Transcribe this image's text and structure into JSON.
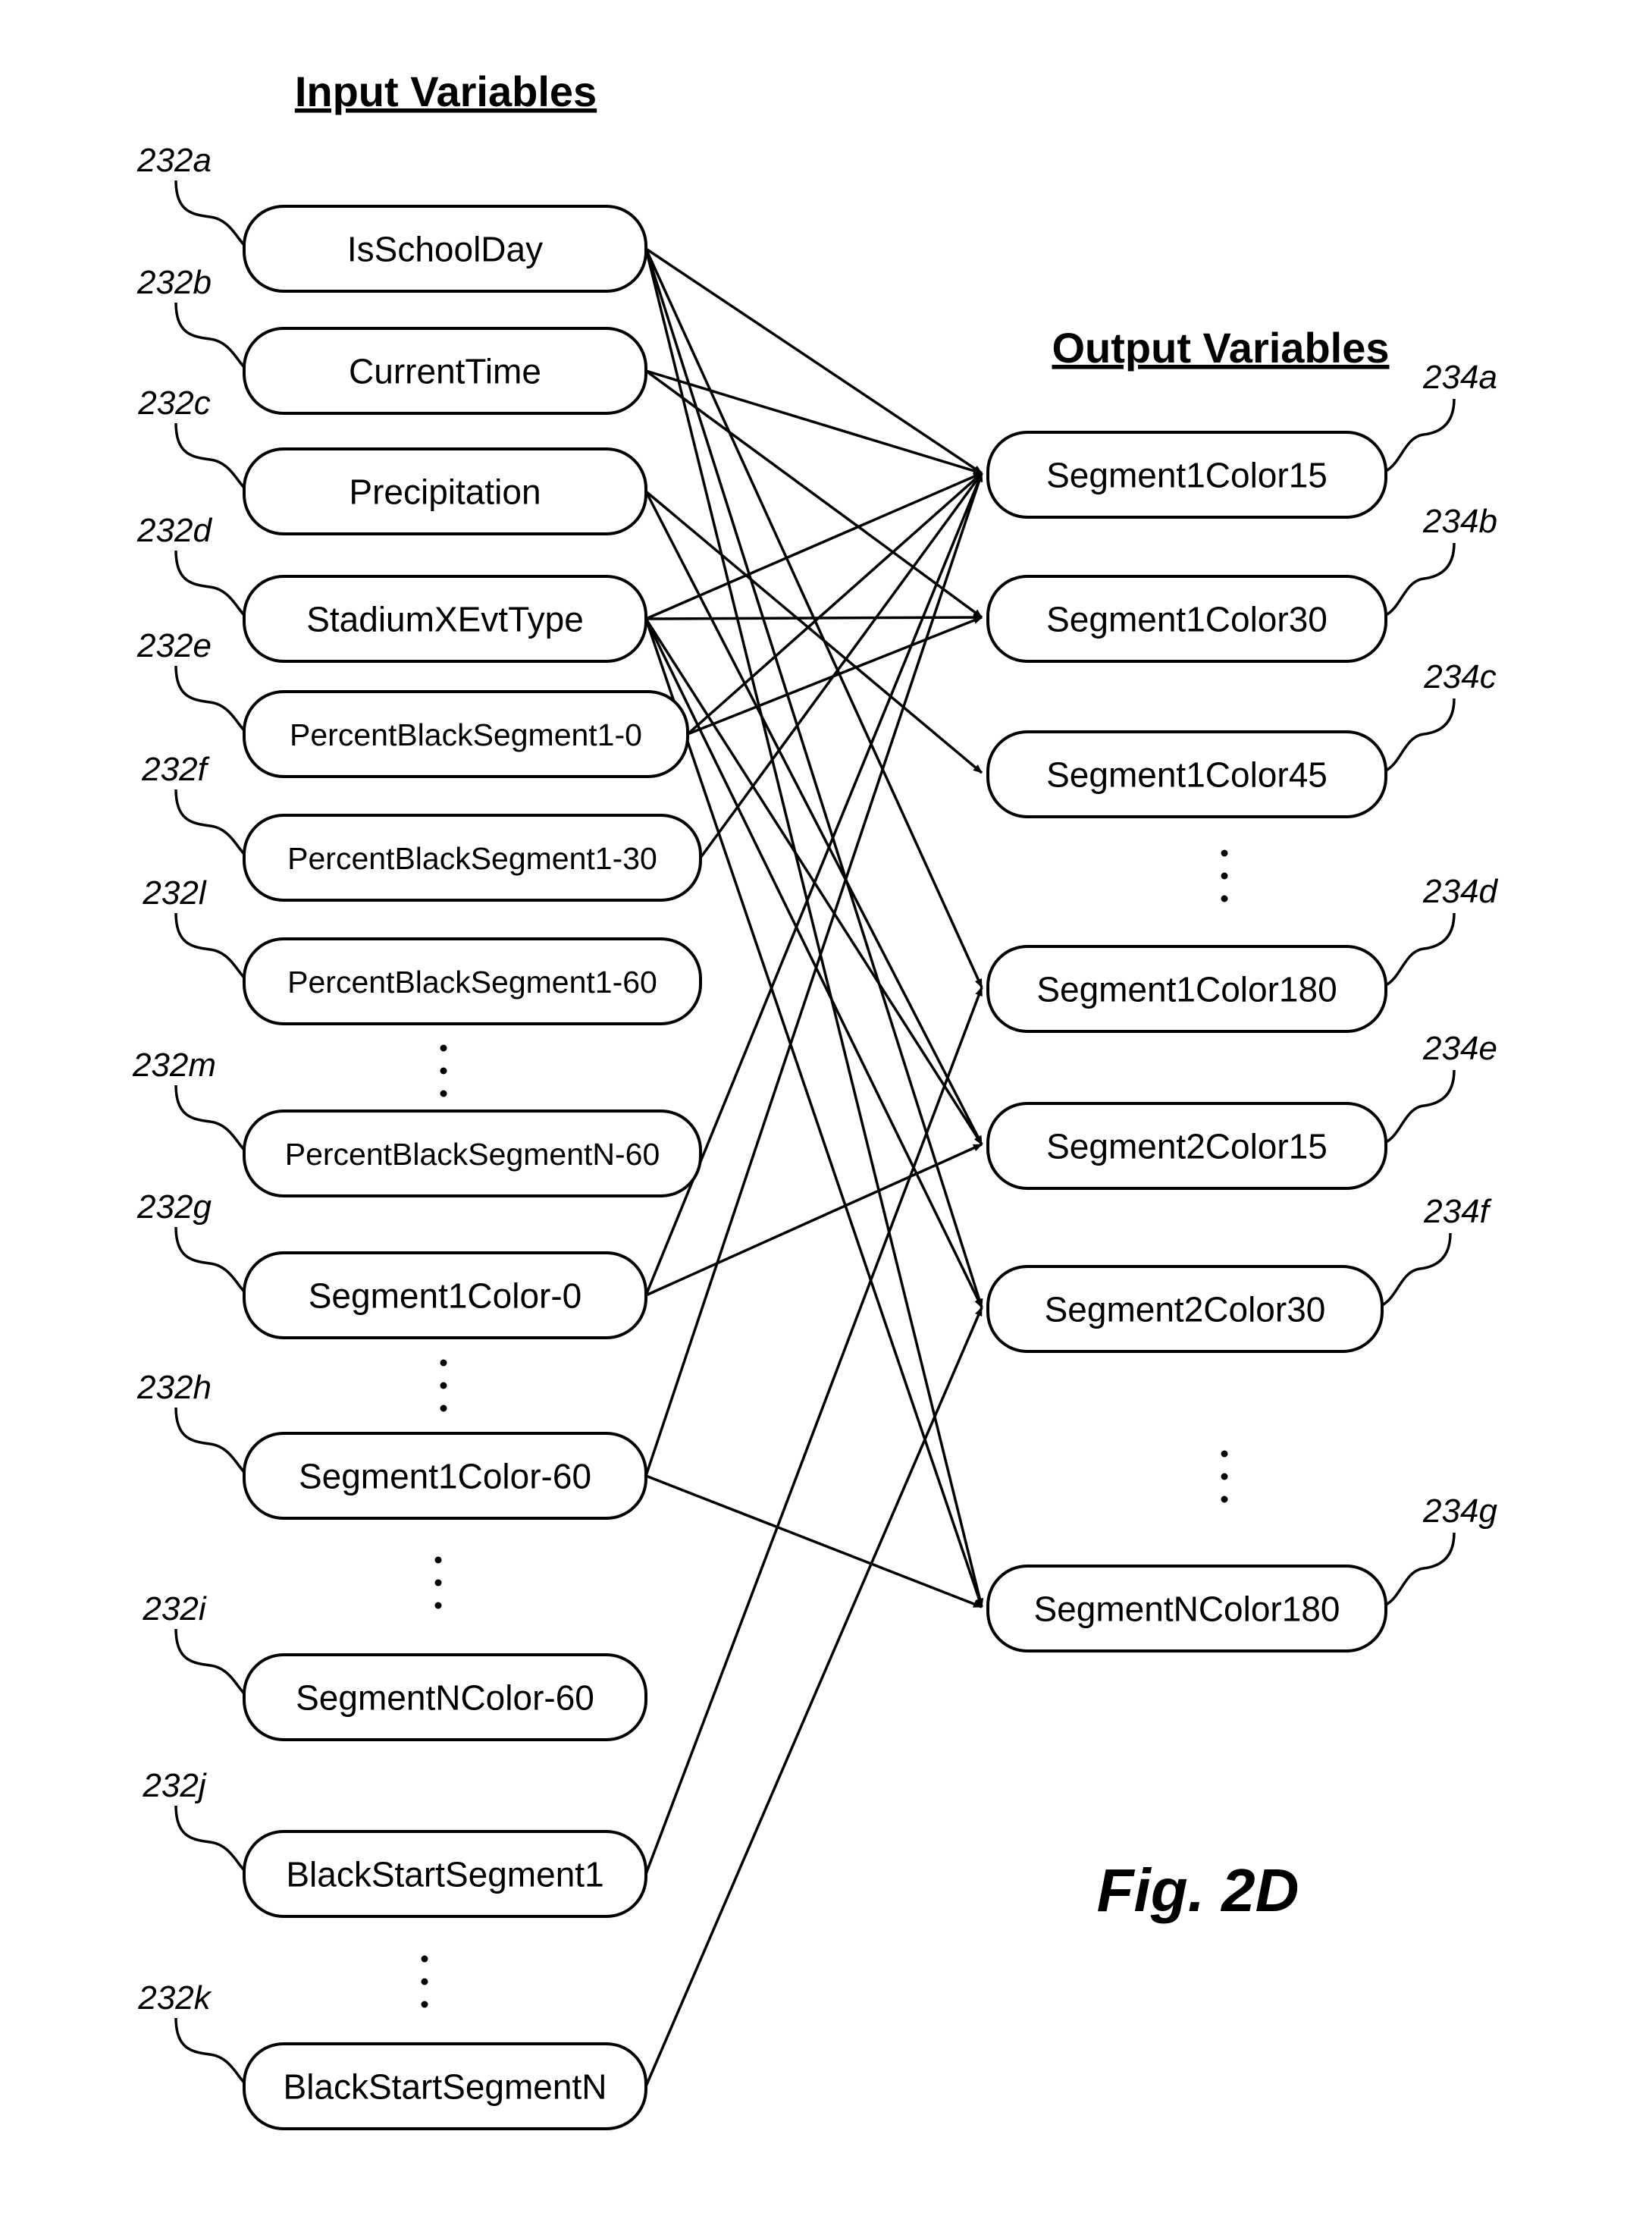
{
  "headings": {
    "input": "Input Variables",
    "output": "Output Variables"
  },
  "figure_label": "Fig. 2D",
  "inputs": [
    {
      "id": "isschoolday",
      "ref": "232a",
      "label": "IsSchoolDay"
    },
    {
      "id": "currenttime",
      "ref": "232b",
      "label": "CurrentTime"
    },
    {
      "id": "precipitation",
      "ref": "232c",
      "label": "Precipitation"
    },
    {
      "id": "stadiumxevttype",
      "ref": "232d",
      "label": "StadiumXEvtType"
    },
    {
      "id": "pbs1-0",
      "ref": "232e",
      "label": "PercentBlackSegment1-0"
    },
    {
      "id": "pbs1-30",
      "ref": "232f",
      "label": "PercentBlackSegment1-30"
    },
    {
      "id": "pbs1-60",
      "ref": "232l",
      "label": "PercentBlackSegment1-60"
    },
    {
      "id": "pbsn-60",
      "ref": "232m",
      "label": "PercentBlackSegmentN-60"
    },
    {
      "id": "s1c-0",
      "ref": "232g",
      "label": "Segment1Color-0"
    },
    {
      "id": "s1c-60",
      "ref": "232h",
      "label": "Segment1Color-60"
    },
    {
      "id": "snc-60",
      "ref": "232i",
      "label": "SegmentNColor-60"
    },
    {
      "id": "bss1",
      "ref": "232j",
      "label": "BlackStartSegment1"
    },
    {
      "id": "bssn",
      "ref": "232k",
      "label": "BlackStartSegmentN"
    }
  ],
  "outputs": [
    {
      "id": "s1c15",
      "ref": "234a",
      "label": "Segment1Color15"
    },
    {
      "id": "s1c30",
      "ref": "234b",
      "label": "Segment1Color30"
    },
    {
      "id": "s1c45",
      "ref": "234c",
      "label": "Segment1Color45"
    },
    {
      "id": "s1c180",
      "ref": "234d",
      "label": "Segment1Color180"
    },
    {
      "id": "s2c15",
      "ref": "234e",
      "label": "Segment2Color15"
    },
    {
      "id": "s2c30",
      "ref": "234f",
      "label": "Segment2Color30"
    },
    {
      "id": "snc180",
      "ref": "234g",
      "label": "SegmentNColor180"
    }
  ],
  "edges": [
    [
      "isschoolday",
      "s1c15"
    ],
    [
      "isschoolday",
      "s1c180"
    ],
    [
      "isschoolday",
      "s2c30"
    ],
    [
      "isschoolday",
      "snc180"
    ],
    [
      "currenttime",
      "s1c15"
    ],
    [
      "currenttime",
      "s1c30"
    ],
    [
      "precipitation",
      "s1c45"
    ],
    [
      "precipitation",
      "s2c15"
    ],
    [
      "stadiumxevttype",
      "s1c15"
    ],
    [
      "stadiumxevttype",
      "s1c30"
    ],
    [
      "stadiumxevttype",
      "s2c15"
    ],
    [
      "stadiumxevttype",
      "s2c30"
    ],
    [
      "stadiumxevttype",
      "snc180"
    ],
    [
      "pbs1-0",
      "s1c15"
    ],
    [
      "pbs1-0",
      "s1c30"
    ],
    [
      "pbs1-30",
      "s1c15"
    ],
    [
      "s1c-0",
      "s1c15"
    ],
    [
      "s1c-0",
      "s2c15"
    ],
    [
      "s1c-60",
      "s1c15"
    ],
    [
      "s1c-60",
      "snc180"
    ],
    [
      "bss1",
      "s1c180"
    ],
    [
      "bssn",
      "s2c30"
    ]
  ]
}
